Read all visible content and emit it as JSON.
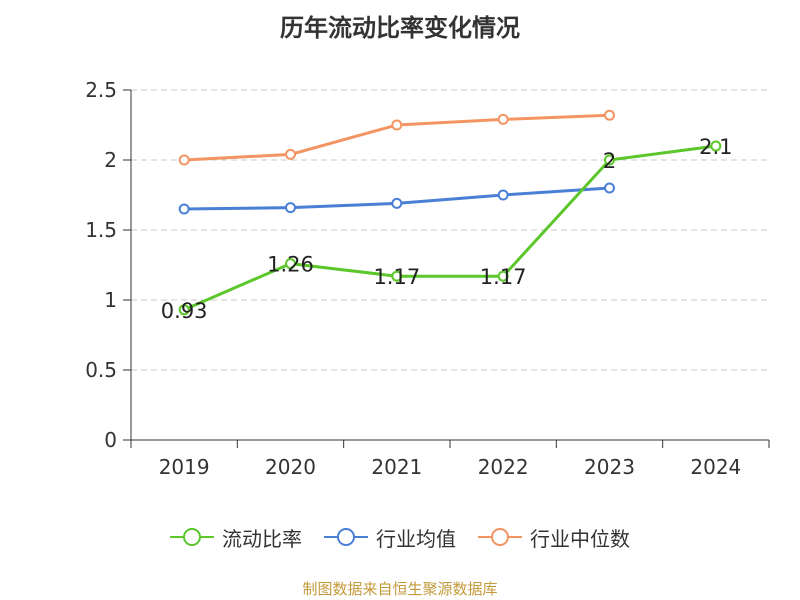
{
  "chart_data": {
    "type": "line",
    "title": "历年流动比率变化情况",
    "categories": [
      "2019",
      "2020",
      "2021",
      "2022",
      "2023",
      "2024"
    ],
    "ylim": [
      0,
      2.5
    ],
    "yticks": [
      "0",
      "0.5",
      "1",
      "1.5",
      "2",
      "2.5"
    ],
    "ytick_values": [
      0,
      0.5,
      1,
      1.5,
      2,
      2.5
    ],
    "grid": true,
    "legend_position": "bottom",
    "series": [
      {
        "name": "流动比率",
        "color": "#5cc72a",
        "values": [
          0.93,
          1.26,
          1.17,
          1.17,
          2,
          2.1
        ],
        "labels": [
          "0.93",
          "1.26",
          "1.17",
          "1.17",
          "2",
          "2.1"
        ]
      },
      {
        "name": "行业均值",
        "color": "#4a7fd6",
        "values": [
          1.65,
          1.66,
          1.69,
          1.75,
          1.8,
          null
        ]
      },
      {
        "name": "行业中位数",
        "color": "#f39462",
        "values": [
          2.0,
          2.04,
          2.25,
          2.29,
          2.32,
          null
        ]
      }
    ]
  },
  "footer": {
    "source": "制图数据来自恒生聚源数据库"
  }
}
